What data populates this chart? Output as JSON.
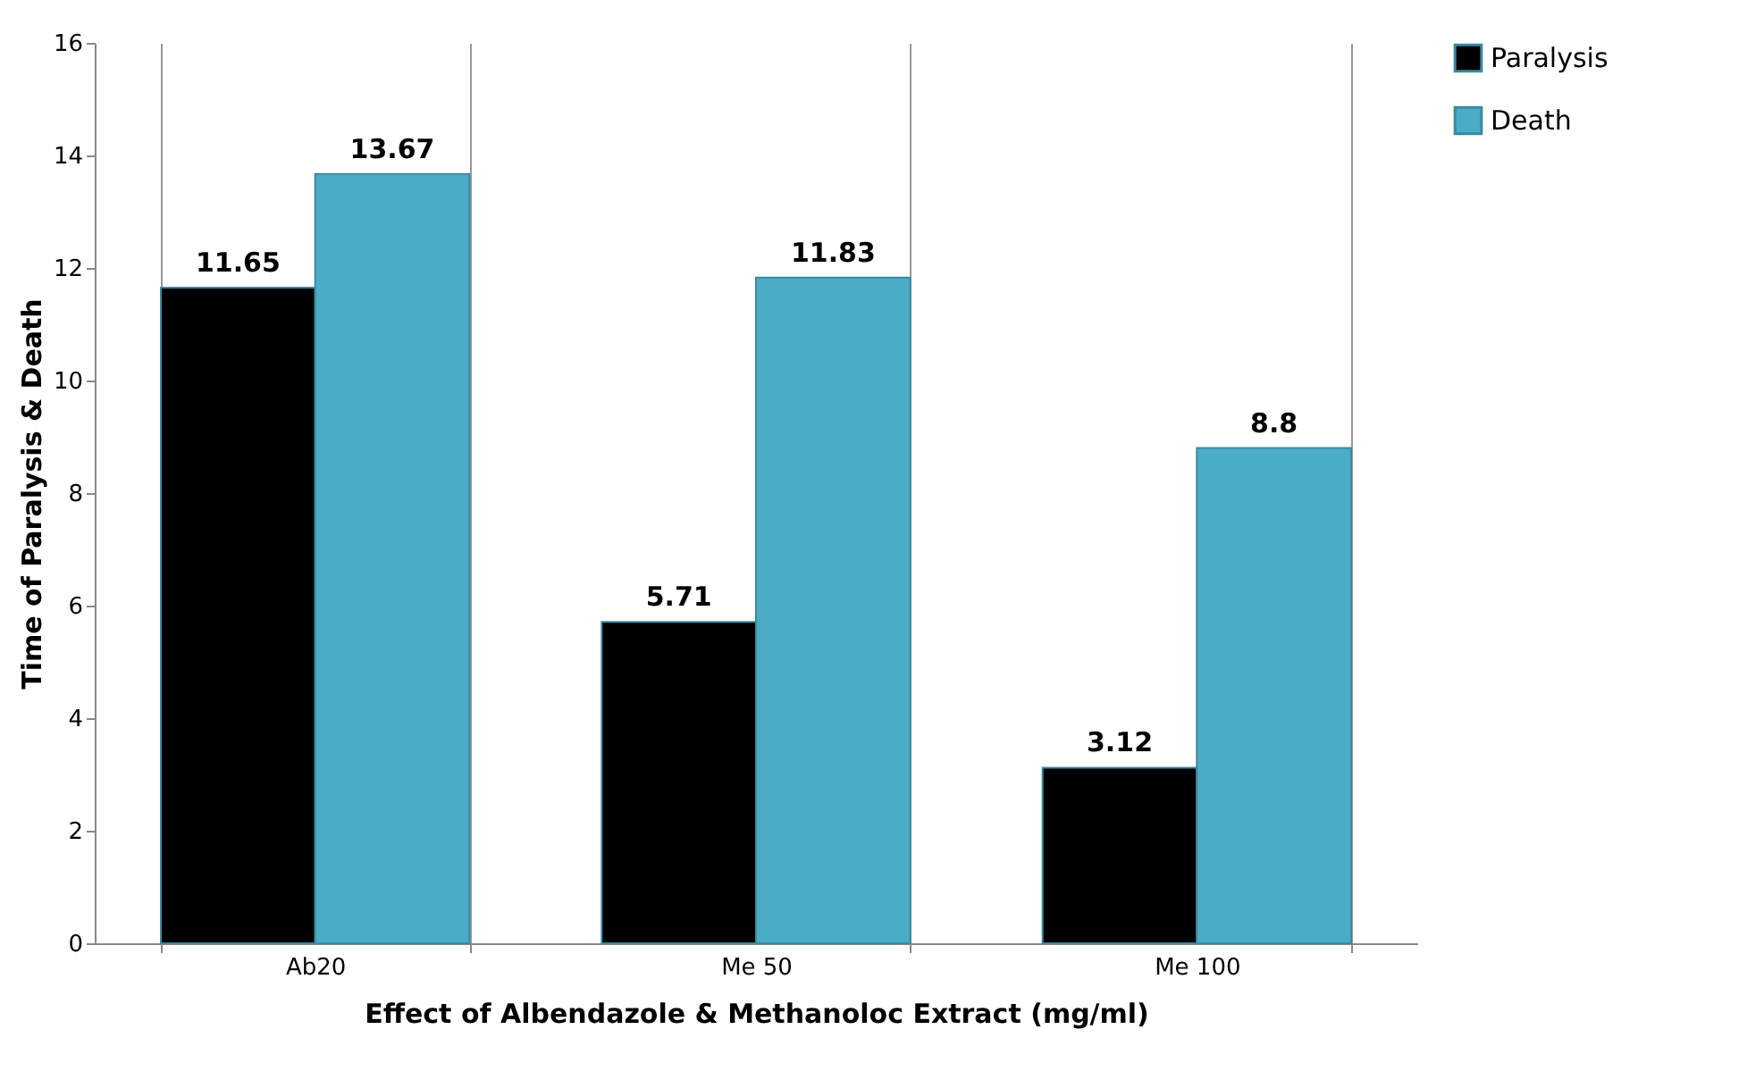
{
  "chart_data": {
    "type": "bar",
    "xlabel": "Effect of Albendazole & Methanoloc Extract (mg/ml)",
    "ylabel": "Time of Paralysis & Death",
    "categories": [
      "Ab20",
      "Me 50",
      "Me 100"
    ],
    "series": [
      {
        "name": "Paralysis",
        "color": "#000000",
        "values": [
          11.65,
          5.71,
          3.12
        ]
      },
      {
        "name": "Death",
        "color": "#4bacc6",
        "values": [
          13.67,
          11.83,
          8.8
        ]
      }
    ],
    "ylim": [
      0,
      16
    ],
    "yticks": [
      0,
      2,
      4,
      6,
      8,
      10,
      12,
      14,
      16
    ],
    "grid": "x",
    "legend": "right",
    "data_labels": true
  }
}
